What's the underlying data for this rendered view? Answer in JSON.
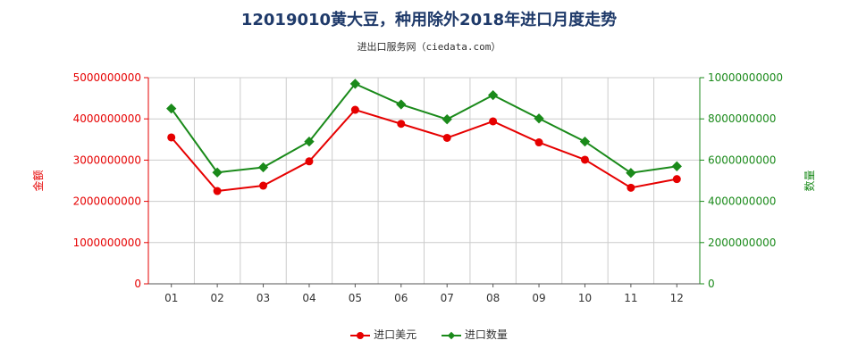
{
  "title": "12019010黄大豆，种用除外2018年进口月度走势",
  "subtitle": "进出口服务网（ciedata.com）",
  "colors": {
    "usd": "#e60000",
    "qty": "#1a8a1a"
  },
  "chart_data": {
    "type": "line",
    "categories": [
      "01",
      "02",
      "03",
      "04",
      "05",
      "06",
      "07",
      "08",
      "09",
      "10",
      "11",
      "12"
    ],
    "series": [
      {
        "name": "进口美元",
        "axis": "left",
        "values": [
          3550000000,
          2250000000,
          2380000000,
          2970000000,
          4220000000,
          3880000000,
          3540000000,
          3940000000,
          3430000000,
          3010000000,
          2330000000,
          2540000000
        ]
      },
      {
        "name": "进口数量",
        "axis": "right",
        "values": [
          8500000000,
          5400000000,
          5650000000,
          6900000000,
          9700000000,
          8700000000,
          7980000000,
          9150000000,
          8020000000,
          6900000000,
          5380000000,
          5700000000
        ]
      }
    ],
    "y_left": {
      "label": "金额",
      "min": 0,
      "max": 5000000000,
      "ticks": [
        "0",
        "1000000000",
        "2000000000",
        "3000000000",
        "4000000000",
        "5000000000"
      ]
    },
    "y_right": {
      "label": "数量",
      "min": 0,
      "max": 10000000000,
      "ticks": [
        "0",
        "2000000000",
        "4000000000",
        "6000000000",
        "8000000000",
        "10000000000"
      ]
    },
    "grid": true,
    "legend": "bottom"
  }
}
